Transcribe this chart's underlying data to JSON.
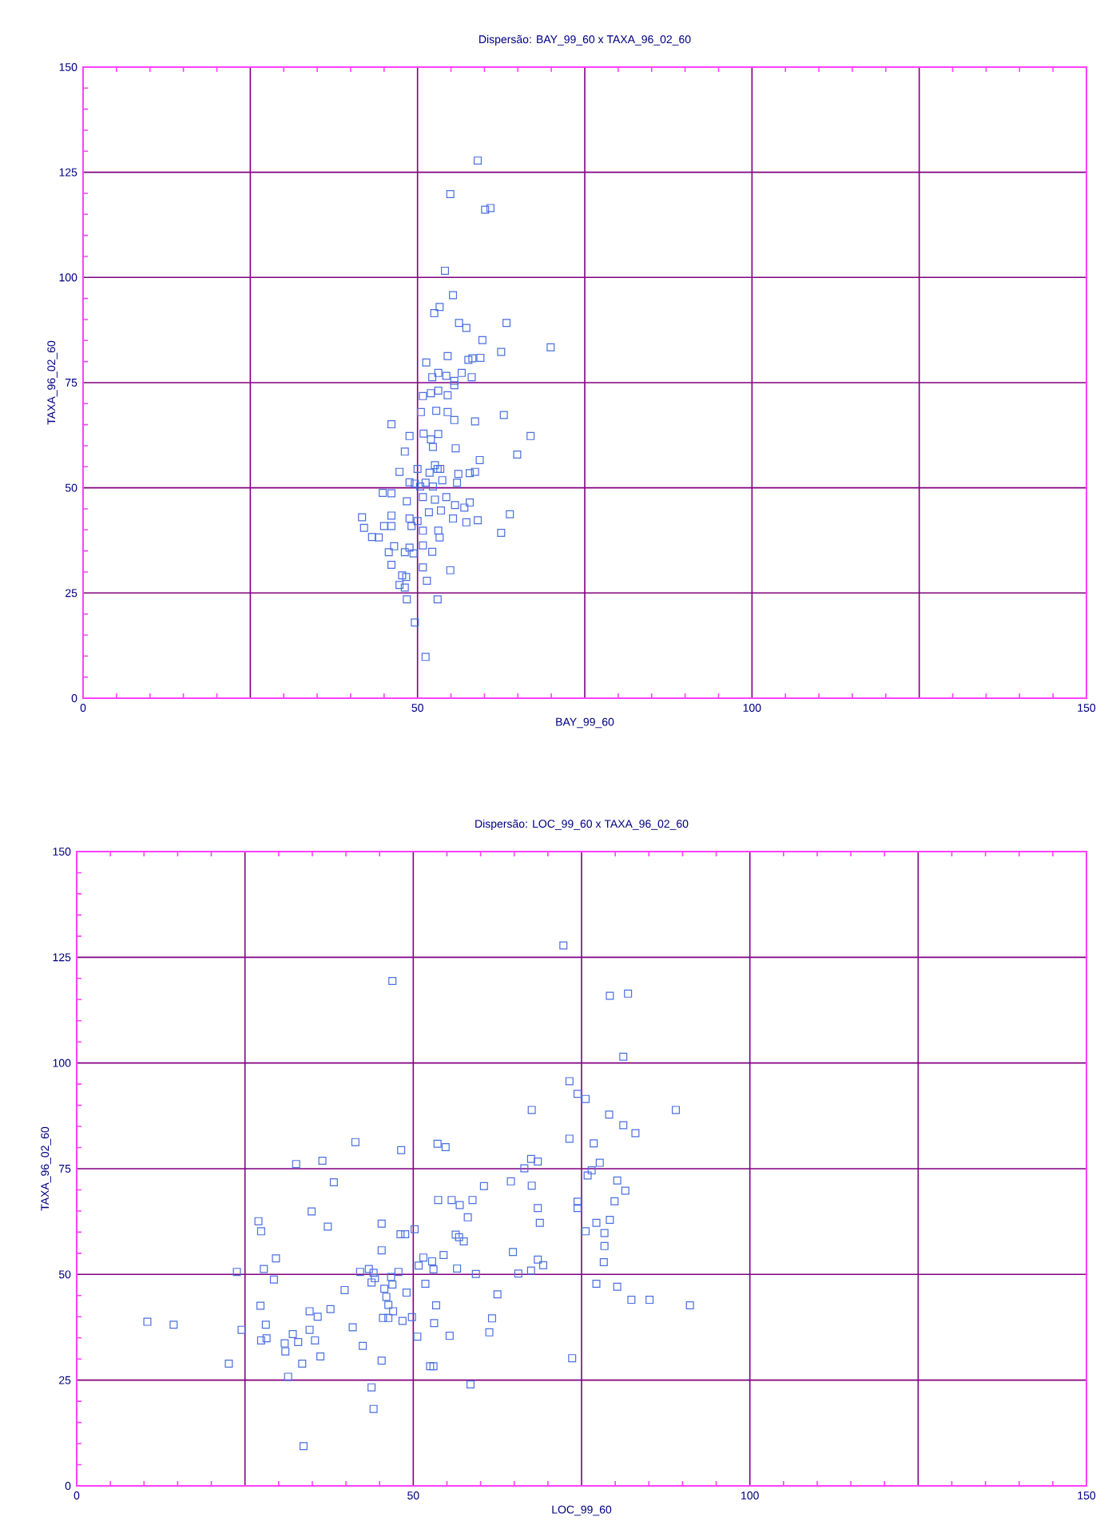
{
  "chart_data": [
    {
      "type": "scatter",
      "title": "Dispersão: BAY_99_60 x TAXA_96_02_60",
      "xlabel": "BAY_99_60",
      "ylabel": "TAXA_96_02_60",
      "color": "#4a6fe0",
      "marker": "square",
      "grid": true,
      "xlim": [
        0,
        150
      ],
      "ylim": [
        0,
        150
      ],
      "xticks": [
        0,
        {
          "value": 25,
          "label": null
        },
        50,
        {
          "value": 75,
          "label": null
        },
        100,
        {
          "value": 125,
          "label": null
        },
        150
      ],
      "yticks": [
        0,
        25,
        50,
        75,
        100,
        125,
        150
      ],
      "x": [
        59.0,
        54.9,
        60.1,
        60.9,
        54.1,
        55.3,
        53.3,
        52.5,
        56.2,
        57.3,
        63.3,
        59.7,
        62.5,
        69.9,
        51.3,
        54.5,
        57.6,
        58.2,
        59.4,
        52.2,
        53.1,
        54.3,
        55.5,
        56.6,
        58.1,
        50.8,
        52.0,
        53.1,
        54.5,
        55.5,
        50.5,
        52.8,
        54.5,
        55.5,
        58.6,
        62.9,
        46.1,
        48.8,
        53.1,
        50.9,
        52.0,
        55.7,
        52.3,
        48.1,
        66.9,
        64.9,
        59.3,
        52.6,
        53.0,
        47.3,
        50.0,
        51.8,
        53.4,
        56.1,
        57.8,
        58.6,
        53.7,
        55.9,
        48.8,
        49.6,
        50.4,
        51.2,
        52.3,
        44.8,
        46.1,
        48.4,
        50.8,
        52.6,
        54.3,
        55.6,
        57.8,
        57.0,
        51.7,
        53.5,
        55.3,
        57.3,
        59.0,
        63.8,
        62.5,
        41.7,
        46.1,
        48.8,
        50.0,
        42.0,
        45.0,
        46.1,
        43.2,
        49.1,
        50.8,
        53.1,
        53.3,
        44.2,
        46.5,
        45.7,
        48.1,
        48.8,
        49.4,
        52.2,
        50.8,
        46.1,
        47.7,
        48.3,
        50.8,
        54.9,
        47.3,
        48.1,
        51.4,
        48.4,
        53.0,
        49.6,
        51.2
      ],
      "values": [
        127.8,
        119.8,
        116.1,
        116.5,
        101.6,
        95.8,
        93.0,
        91.5,
        89.2,
        88.0,
        89.2,
        85.1,
        82.3,
        83.4,
        79.8,
        81.3,
        80.4,
        80.8,
        80.9,
        76.3,
        77.3,
        76.6,
        75.4,
        77.3,
        76.3,
        71.8,
        72.5,
        73.1,
        72.0,
        74.4,
        68.0,
        68.3,
        68.0,
        66.1,
        65.8,
        67.3,
        65.1,
        62.3,
        62.8,
        62.9,
        61.5,
        59.4,
        59.7,
        58.6,
        62.3,
        57.9,
        56.6,
        55.4,
        54.5,
        53.8,
        54.5,
        53.6,
        54.5,
        53.3,
        53.5,
        53.8,
        51.8,
        51.2,
        51.3,
        51.0,
        50.3,
        51.2,
        50.3,
        48.8,
        48.7,
        46.8,
        47.8,
        47.2,
        47.8,
        45.9,
        46.5,
        45.3,
        44.2,
        44.6,
        42.7,
        41.8,
        42.3,
        43.7,
        39.3,
        43.0,
        43.4,
        42.7,
        42.1,
        40.5,
        40.9,
        40.9,
        38.3,
        40.9,
        39.8,
        39.8,
        38.2,
        38.2,
        36.1,
        34.7,
        34.7,
        35.8,
        34.4,
        34.8,
        36.3,
        31.7,
        29.2,
        28.8,
        31.1,
        30.4,
        26.9,
        26.3,
        27.9,
        23.5,
        23.5,
        18.0,
        9.8
      ]
    },
    {
      "type": "scatter",
      "title": "Dispersão: LOC_99_60 x TAXA_96_02_60",
      "xlabel": "LOC_99_60",
      "ylabel": "TAXA_96_02_60",
      "color": "#4a6fe0",
      "marker": "square",
      "grid": true,
      "xlim": [
        0,
        150
      ],
      "ylim": [
        0,
        150
      ],
      "xticks": [
        0,
        {
          "value": 25,
          "label": null
        },
        50,
        {
          "value": 75,
          "label": null
        },
        100,
        {
          "value": 125,
          "label": null
        },
        150
      ],
      "yticks": [
        0,
        25,
        50,
        75,
        100,
        125,
        150
      ],
      "x": [
        46.9,
        41.4,
        48.2,
        32.6,
        36.5,
        38.2,
        34.9,
        37.3,
        45.3,
        27.0,
        27.4,
        48.1,
        48.8,
        45.3,
        29.6,
        23.8,
        27.8,
        29.3,
        42.1,
        43.4,
        44.1,
        44.3,
        43.8,
        46.7,
        47.8,
        49.0,
        46.9,
        45.7,
        46.0,
        46.3,
        47.0,
        45.5,
        46.3,
        39.8,
        41.0,
        37.7,
        34.6,
        35.8,
        27.3,
        28.1,
        24.5,
        27.4,
        28.2,
        30.9,
        32.1,
        32.9,
        31.0,
        34.6,
        35.4,
        33.5,
        36.2,
        31.4,
        22.6,
        42.5,
        45.3,
        43.8,
        44.1,
        33.7,
        10.5,
        14.4,
        48.4,
        72.3,
        79.2,
        81.9,
        81.2,
        73.2,
        74.4,
        75.6,
        67.6,
        79.1,
        89.0,
        81.2,
        83.0,
        73.2,
        76.8,
        53.6,
        54.8,
        67.5,
        68.5,
        66.5,
        77.7,
        76.5,
        75.9,
        60.5,
        64.5,
        67.6,
        80.3,
        81.5,
        79.9,
        53.7,
        55.7,
        56.9,
        58.8,
        58.1,
        74.4,
        74.4,
        68.5,
        68.8,
        77.2,
        79.2,
        75.6,
        78.4,
        78.4,
        78.3,
        50.2,
        56.3,
        56.8,
        57.5,
        51.5,
        52.8,
        54.5,
        50.8,
        53.0,
        56.5,
        59.3,
        64.8,
        68.5,
        69.3,
        65.6,
        67.5,
        51.8,
        62.5,
        53.4,
        53.1,
        55.4,
        61.7,
        61.3,
        49.8,
        50.6,
        77.2,
        80.3,
        82.4,
        85.1,
        91.1,
        73.6,
        52.5,
        53.0,
        58.5
      ],
      "values": [
        119.4,
        81.3,
        79.4,
        76.1,
        76.9,
        71.8,
        64.9,
        61.3,
        62.0,
        62.6,
        60.2,
        59.5,
        59.5,
        55.7,
        53.8,
        50.6,
        51.3,
        48.8,
        50.6,
        51.3,
        50.4,
        49.1,
        48.1,
        49.4,
        50.6,
        45.7,
        47.6,
        46.6,
        44.7,
        42.8,
        41.3,
        39.7,
        39.7,
        46.3,
        37.5,
        41.8,
        41.3,
        40.0,
        42.6,
        38.1,
        36.9,
        34.4,
        34.9,
        33.7,
        35.9,
        34.0,
        31.8,
        36.9,
        34.4,
        28.9,
        30.6,
        25.8,
        28.9,
        33.1,
        29.6,
        23.3,
        18.2,
        9.4,
        38.8,
        38.1,
        39.0,
        127.8,
        115.9,
        116.4,
        101.5,
        95.7,
        92.7,
        91.5,
        88.9,
        87.8,
        88.9,
        85.3,
        83.4,
        82.1,
        81.0,
        80.9,
        80.1,
        77.3,
        76.7,
        75.1,
        76.4,
        74.6,
        73.4,
        70.9,
        72.0,
        71.0,
        72.2,
        69.8,
        67.3,
        67.6,
        67.6,
        66.4,
        67.6,
        63.5,
        67.2,
        65.7,
        65.7,
        62.2,
        62.2,
        62.9,
        60.2,
        59.8,
        56.7,
        52.9,
        60.7,
        59.4,
        58.8,
        57.8,
        54.0,
        53.1,
        54.6,
        52.1,
        51.2,
        51.4,
        50.1,
        55.3,
        53.5,
        52.2,
        50.2,
        50.9,
        47.8,
        45.3,
        42.7,
        38.5,
        35.5,
        39.6,
        36.3,
        39.9,
        35.3,
        47.8,
        47.1,
        44.0,
        44.0,
        42.7,
        30.2,
        28.3,
        28.3,
        24.0
      ]
    }
  ]
}
